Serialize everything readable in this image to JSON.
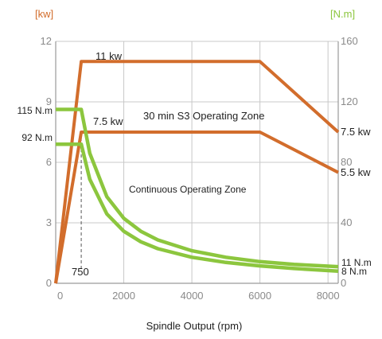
{
  "chart_data": {
    "type": "line",
    "left_axis_unit": "[kw]",
    "right_axis_unit": "[N.m]",
    "xlabel": "Spindle Output (rpm)",
    "xlim": [
      0,
      8300
    ],
    "ylim_left": [
      0,
      12
    ],
    "ylim_right": [
      0,
      160
    ],
    "x_ticks": [
      "0",
      "2000",
      "4000",
      "6000",
      "8000"
    ],
    "x_tick_values": [
      0,
      2000,
      4000,
      6000,
      8000
    ],
    "y_left_ticks": [
      "0",
      "3",
      "6",
      "9",
      "12"
    ],
    "y_left_tick_values": [
      0,
      3,
      6,
      9,
      12
    ],
    "y_right_ticks": [
      "0",
      "40",
      "80",
      "120",
      "160"
    ],
    "y_right_tick_values": [
      0,
      40,
      80,
      120,
      160
    ],
    "grid": true,
    "colors": {
      "power": "#d26d2c",
      "torque": "#8cc63e",
      "grid": "#c8c8c8",
      "axis": "#9a9a9a"
    },
    "series": [
      {
        "axis": "left",
        "kind": "power",
        "points": [
          [
            0,
            0
          ],
          [
            750,
            11
          ],
          [
            6000,
            11
          ],
          [
            8300,
            7.5
          ]
        ]
      },
      {
        "axis": "left",
        "kind": "power",
        "points": [
          [
            0,
            0
          ],
          [
            750,
            7.5
          ],
          [
            6000,
            7.5
          ],
          [
            8300,
            5.5
          ]
        ]
      },
      {
        "axis": "right",
        "kind": "torque",
        "points": [
          [
            0,
            115
          ],
          [
            750,
            115
          ],
          [
            1000,
            86
          ],
          [
            1500,
            57.3
          ],
          [
            2000,
            43
          ],
          [
            2500,
            34.4
          ],
          [
            3000,
            28.7
          ],
          [
            4000,
            21.5
          ],
          [
            5000,
            17.2
          ],
          [
            6000,
            14.3
          ],
          [
            7000,
            12.5
          ],
          [
            8300,
            11
          ]
        ]
      },
      {
        "axis": "right",
        "kind": "torque",
        "points": [
          [
            0,
            92
          ],
          [
            750,
            92
          ],
          [
            1000,
            68.8
          ],
          [
            1500,
            45.9
          ],
          [
            2000,
            34.4
          ],
          [
            2500,
            27.5
          ],
          [
            3000,
            22.9
          ],
          [
            4000,
            17.2
          ],
          [
            5000,
            13.8
          ],
          [
            6000,
            11.5
          ],
          [
            7000,
            9.8
          ],
          [
            8300,
            8
          ]
        ]
      }
    ],
    "annotations": {
      "power_s3": "11 kw",
      "power_cont": "7.5 kw",
      "zone_s3": "30 min S3  Operating Zone",
      "zone_cont": "Continuous Operating Zone",
      "end_s3": "7.5 kw",
      "end_cont": "5.5 kw",
      "torque_s3": "115 N.m",
      "torque_cont": "92 N.m",
      "end_torque_s3": "11 N.m",
      "end_torque_cont": "8 N.m",
      "base_speed": "750"
    }
  }
}
